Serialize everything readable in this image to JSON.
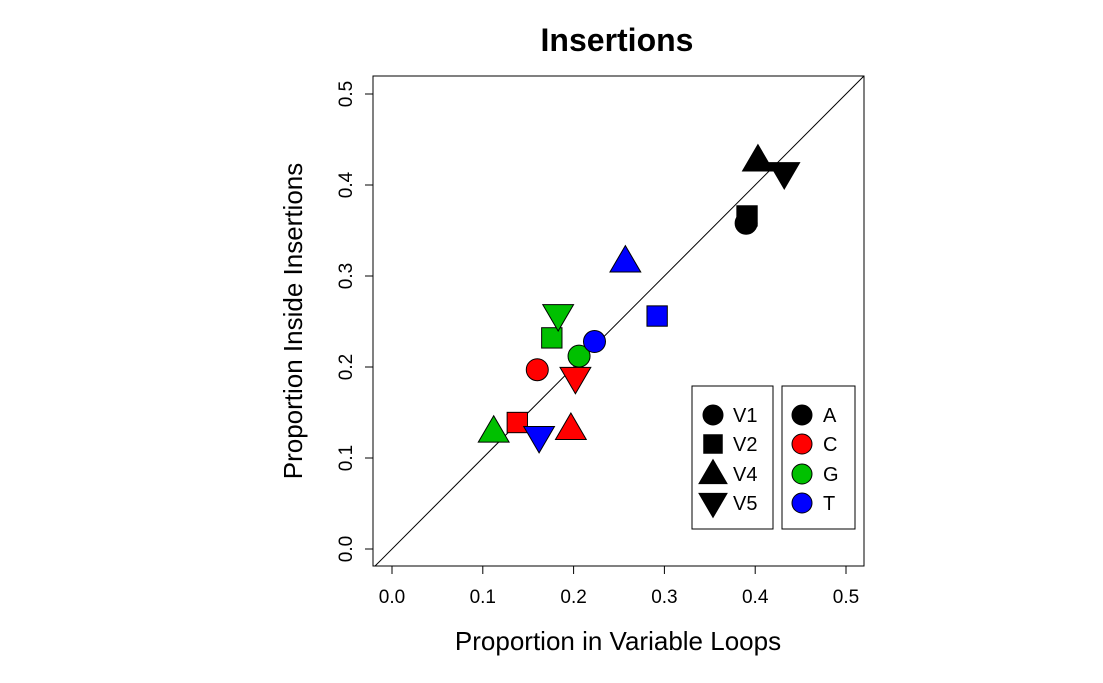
{
  "chart_data": {
    "type": "scatter",
    "title": "Insertions",
    "xlabel": "Proportion in Variable Loops",
    "ylabel": "Proportion Inside Insertions",
    "xlim": [
      0,
      0.5
    ],
    "ylim": [
      0,
      0.5
    ],
    "xticks": [
      "0.0",
      "0.1",
      "0.2",
      "0.3",
      "0.4",
      "0.5"
    ],
    "yticks": [
      "0.0",
      "0.1",
      "0.2",
      "0.3",
      "0.4",
      "0.5"
    ],
    "reference_line": "y = x",
    "grid": false,
    "colors": {
      "A": "#000000",
      "C": "#ff0000",
      "G": "#00c000",
      "T": "#0000ff"
    },
    "shapes": {
      "V1": "circle",
      "V2": "square",
      "V4": "triangle-up",
      "V5": "triangle-down"
    },
    "points": [
      {
        "region": "V1",
        "base": "A",
        "x": 0.39,
        "y": 0.358
      },
      {
        "region": "V2",
        "base": "A",
        "x": 0.391,
        "y": 0.366
      },
      {
        "region": "V4",
        "base": "A",
        "x": 0.403,
        "y": 0.427
      },
      {
        "region": "V5",
        "base": "A",
        "x": 0.432,
        "y": 0.413
      },
      {
        "region": "V1",
        "base": "C",
        "x": 0.16,
        "y": 0.197
      },
      {
        "region": "V2",
        "base": "C",
        "x": 0.138,
        "y": 0.139
      },
      {
        "region": "V4",
        "base": "C",
        "x": 0.197,
        "y": 0.132
      },
      {
        "region": "V5",
        "base": "C",
        "x": 0.202,
        "y": 0.188
      },
      {
        "region": "V1",
        "base": "G",
        "x": 0.206,
        "y": 0.212
      },
      {
        "region": "V2",
        "base": "G",
        "x": 0.176,
        "y": 0.232
      },
      {
        "region": "V4",
        "base": "G",
        "x": 0.112,
        "y": 0.129
      },
      {
        "region": "V5",
        "base": "G",
        "x": 0.183,
        "y": 0.257
      },
      {
        "region": "V1",
        "base": "T",
        "x": 0.223,
        "y": 0.228
      },
      {
        "region": "V2",
        "base": "T",
        "x": 0.292,
        "y": 0.256
      },
      {
        "region": "V4",
        "base": "T",
        "x": 0.257,
        "y": 0.316
      },
      {
        "region": "V5",
        "base": "T",
        "x": 0.162,
        "y": 0.123
      }
    ],
    "legend_shapes": [
      {
        "label": "V1",
        "shape": "circle"
      },
      {
        "label": "V2",
        "shape": "square"
      },
      {
        "label": "V4",
        "shape": "triangle-up"
      },
      {
        "label": "V5",
        "shape": "triangle-down"
      }
    ],
    "legend_colors": [
      {
        "label": "A",
        "color": "#000000"
      },
      {
        "label": "C",
        "color": "#ff0000"
      },
      {
        "label": "G",
        "color": "#00c000"
      },
      {
        "label": "T",
        "color": "#0000ff"
      }
    ],
    "legend_placement": "bottom-right"
  }
}
